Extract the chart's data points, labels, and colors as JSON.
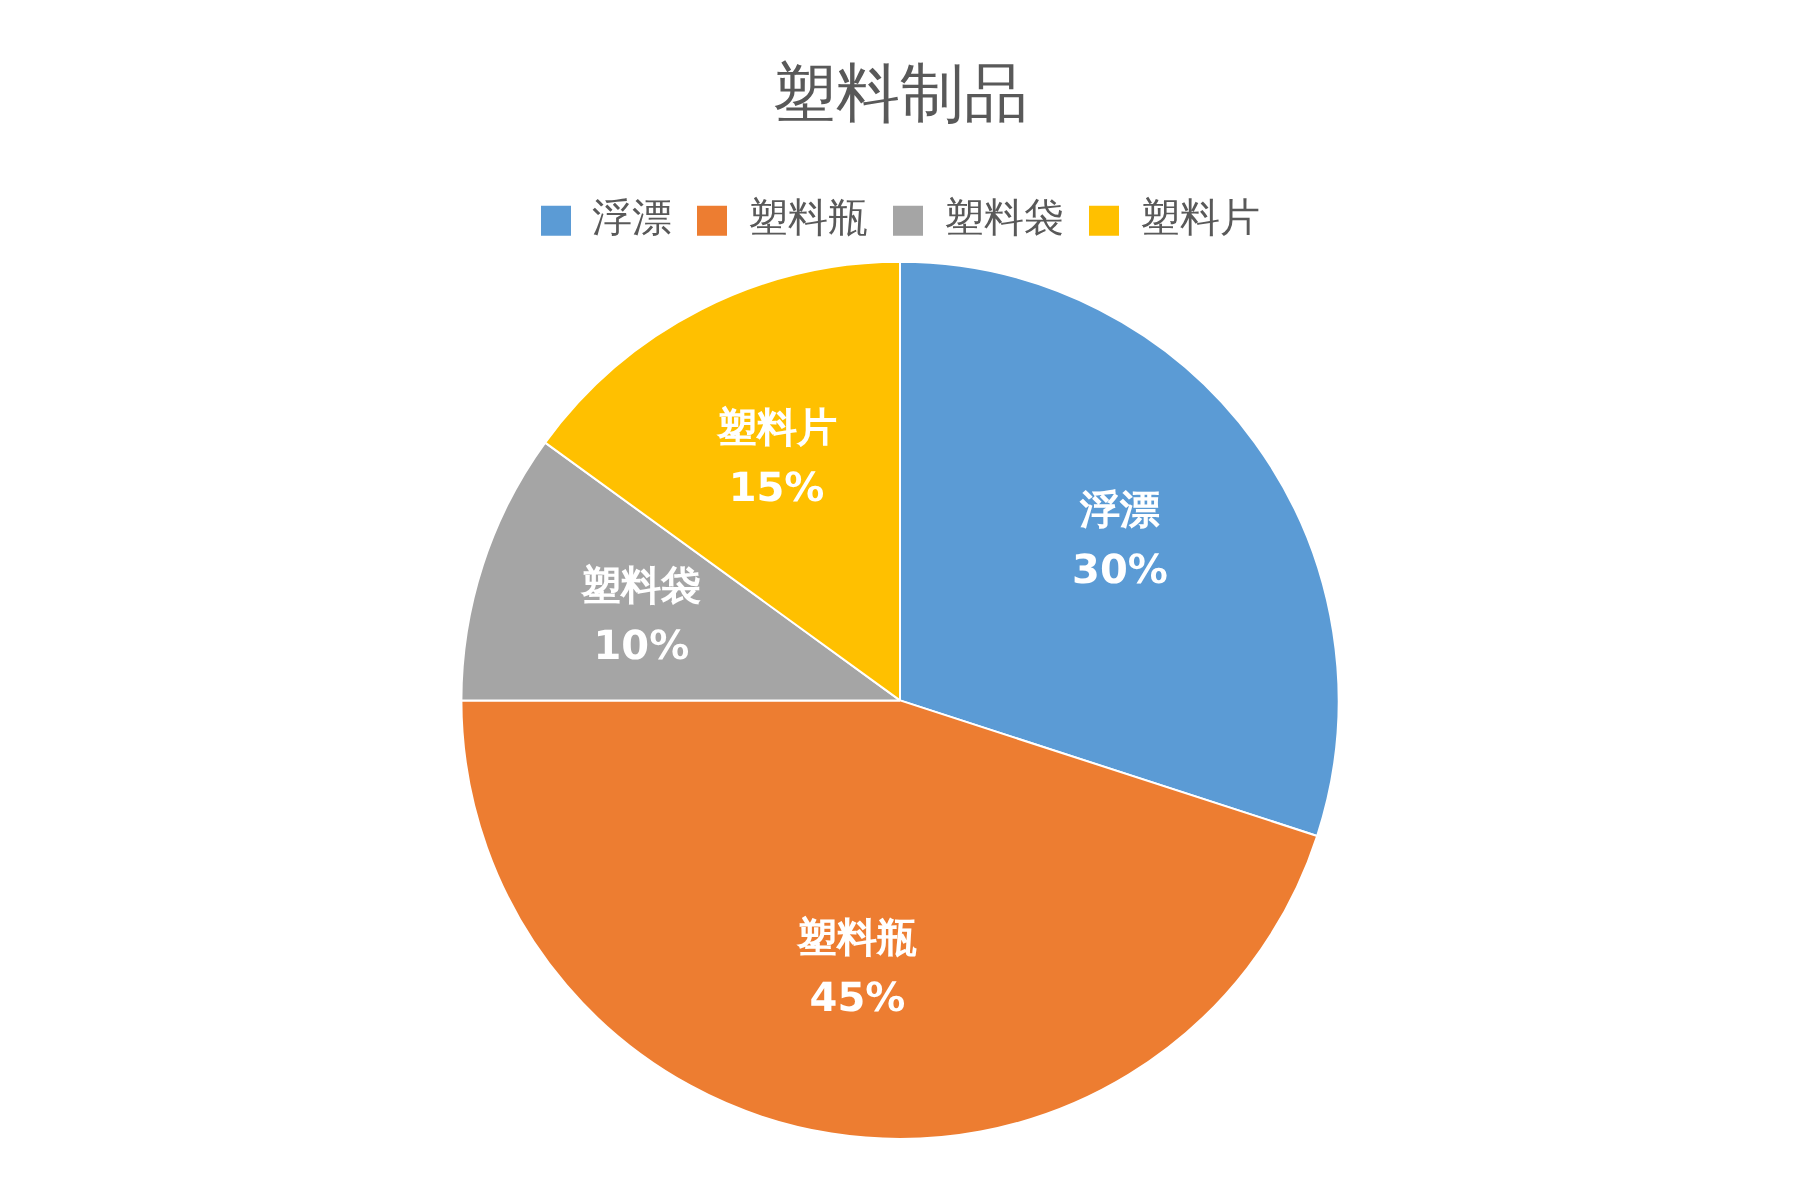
{
  "chart_data": {
    "type": "pie",
    "title": "塑料制品",
    "categories": [
      "浮漂",
      "塑料瓶",
      "塑料袋",
      "塑料片"
    ],
    "values": [
      30,
      45,
      10,
      15
    ],
    "colors": [
      "#5b9bd5",
      "#ed7d31",
      "#a5a5a5",
      "#ffc000"
    ],
    "value_labels": [
      "30%",
      "45%",
      "10%",
      "15%"
    ],
    "legend": "top"
  }
}
